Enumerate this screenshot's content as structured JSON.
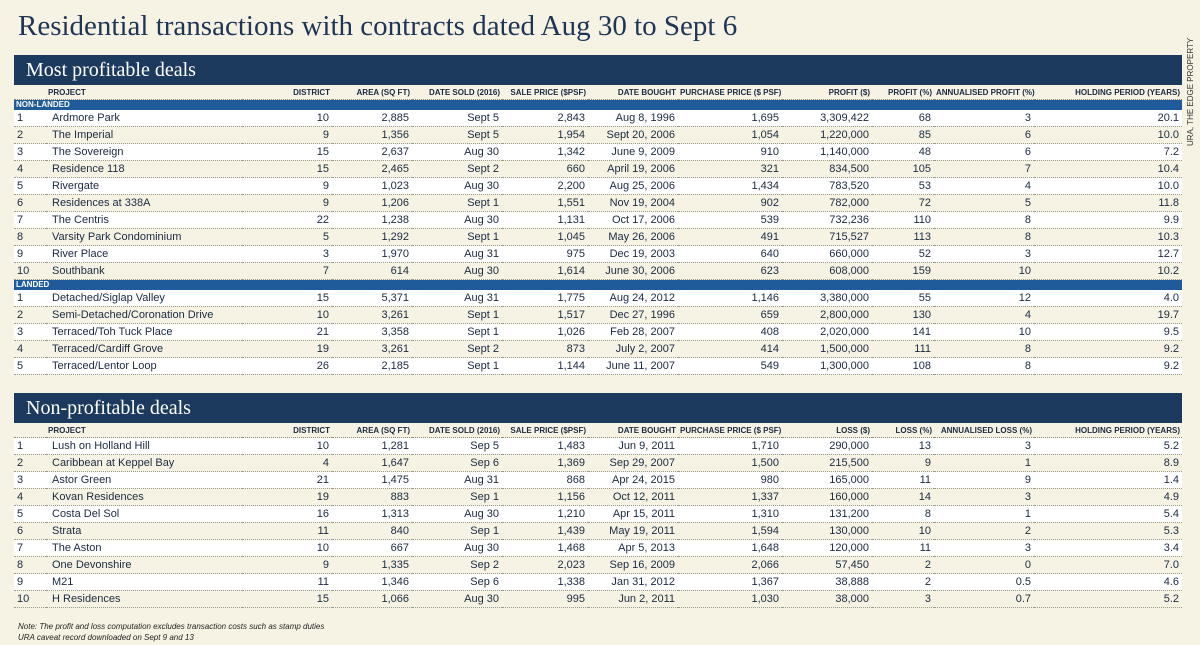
{
  "title": "Residential transactions with contracts dated Aug 30 to Sept 6",
  "source": "URA, THE EDGE PROPERTY",
  "profitable": {
    "banner": "Most profitable deals",
    "headers": [
      "PROJECT",
      "DISTRICT",
      "AREA (SQ FT)",
      "DATE SOLD (2016)",
      "SALE PRICE ($PSF)",
      "DATE BOUGHT",
      "PURCHASE PRICE ($ PSF)",
      "PROFIT ($)",
      "PROFIT (%)",
      "ANNUALISED PROFIT (%)",
      "HOLDING PERIOD (YEARS)"
    ],
    "groups": [
      {
        "label": "NON-LANDED",
        "rows": [
          [
            "1",
            "Ardmore Park",
            "10",
            "2,885",
            "Sept 5",
            "2,843",
            "Aug 8, 1996",
            "1,695",
            "3,309,422",
            "68",
            "3",
            "20.1"
          ],
          [
            "2",
            "The Imperial",
            "9",
            "1,356",
            "Sept 5",
            "1,954",
            "Sept 20, 2006",
            "1,054",
            "1,220,000",
            "85",
            "6",
            "10.0"
          ],
          [
            "3",
            "The Sovereign",
            "15",
            "2,637",
            "Aug 30",
            "1,342",
            "June 9, 2009",
            "910",
            "1,140,000",
            "48",
            "6",
            "7.2"
          ],
          [
            "4",
            "Residence 118",
            "15",
            "2,465",
            "Sept 2",
            "660",
            "April 19, 2006",
            "321",
            "834,500",
            "105",
            "7",
            "10.4"
          ],
          [
            "5",
            "Rivergate",
            "9",
            "1,023",
            "Aug 30",
            "2,200",
            "Aug 25, 2006",
            "1,434",
            "783,520",
            "53",
            "4",
            "10.0"
          ],
          [
            "6",
            "Residences at 338A",
            "9",
            "1,206",
            "Sept 1",
            "1,551",
            "Nov 19, 2004",
            "902",
            "782,000",
            "72",
            "5",
            "11.8"
          ],
          [
            "7",
            "The Centris",
            "22",
            "1,238",
            "Aug 30",
            "1,131",
            "Oct 17, 2006",
            "539",
            "732,236",
            "110",
            "8",
            "9.9"
          ],
          [
            "8",
            "Varsity Park Condominium",
            "5",
            "1,292",
            "Sept 1",
            "1,045",
            "May 26, 2006",
            "491",
            "715,527",
            "113",
            "8",
            "10.3"
          ],
          [
            "9",
            "River Place",
            "3",
            "1,970",
            "Aug 31",
            "975",
            "Dec 19, 2003",
            "640",
            "660,000",
            "52",
            "3",
            "12.7"
          ],
          [
            "10",
            "Southbank",
            "7",
            "614",
            "Aug 30",
            "1,614",
            "June 30, 2006",
            "623",
            "608,000",
            "159",
            "10",
            "10.2"
          ]
        ]
      },
      {
        "label": "LANDED",
        "rows": [
          [
            "1",
            "Detached/Siglap Valley",
            "15",
            "5,371",
            "Aug 31",
            "1,775",
            "Aug 24, 2012",
            "1,146",
            "3,380,000",
            "55",
            "12",
            "4.0"
          ],
          [
            "2",
            "Semi-Detached/Coronation Drive",
            "10",
            "3,261",
            "Sept 1",
            "1,517",
            "Dec 27, 1996",
            "659",
            "2,800,000",
            "130",
            "4",
            "19.7"
          ],
          [
            "3",
            "Terraced/Toh Tuck Place",
            "21",
            "3,358",
            "Sept 1",
            "1,026",
            "Feb 28, 2007",
            "408",
            "2,020,000",
            "141",
            "10",
            "9.5"
          ],
          [
            "4",
            "Terraced/Cardiff Grove",
            "19",
            "3,261",
            "Sept 2",
            "873",
            "July 2, 2007",
            "414",
            "1,500,000",
            "111",
            "8",
            "9.2"
          ],
          [
            "5",
            "Terraced/Lentor Loop",
            "26",
            "2,185",
            "Sept 1",
            "1,144",
            "June 11, 2007",
            "549",
            "1,300,000",
            "108",
            "8",
            "9.2"
          ]
        ]
      }
    ]
  },
  "nonprofitable": {
    "banner": "Non-profitable deals",
    "headers": [
      "PROJECT",
      "DISTRICT",
      "AREA (SQ FT)",
      "DATE SOLD (2016)",
      "SALE PRICE ($PSF)",
      "DATE BOUGHT",
      "PURCHASE PRICE ($ PSF)",
      "LOSS ($)",
      "LOSS (%)",
      "ANNUALISED LOSS (%)",
      "HOLDING PERIOD (YEARS)"
    ],
    "rows": [
      [
        "1",
        "Lush on Holland Hill",
        "10",
        "1,281",
        "Sep 5",
        "1,483",
        "Jun 9, 2011",
        "1,710",
        "290,000",
        "13",
        "3",
        "5.2"
      ],
      [
        "2",
        "Caribbean at Keppel Bay",
        "4",
        "1,647",
        "Sep 6",
        "1,369",
        "Sep 29, 2007",
        "1,500",
        "215,500",
        "9",
        "1",
        "8.9"
      ],
      [
        "3",
        "Astor Green",
        "21",
        "1,475",
        "Aug 31",
        "868",
        "Apr 24, 2015",
        "980",
        "165,000",
        "11",
        "9",
        "1.4"
      ],
      [
        "4",
        "Kovan Residences",
        "19",
        "883",
        "Sep 1",
        "1,156",
        "Oct 12, 2011",
        "1,337",
        "160,000",
        "14",
        "3",
        "4.9"
      ],
      [
        "5",
        "Costa Del Sol",
        "16",
        "1,313",
        "Aug 30",
        "1,210",
        "Apr 15, 2011",
        "1,310",
        "131,200",
        "8",
        "1",
        "5.4"
      ],
      [
        "6",
        "Strata",
        "11",
        "840",
        "Sep 1",
        "1,439",
        "May 19, 2011",
        "1,594",
        "130,000",
        "10",
        "2",
        "5.3"
      ],
      [
        "7",
        "The Aston",
        "10",
        "667",
        "Aug 30",
        "1,468",
        "Apr 5, 2013",
        "1,648",
        "120,000",
        "11",
        "3",
        "3.4"
      ],
      [
        "8",
        "One Devonshire",
        "9",
        "1,335",
        "Sep 2",
        "2,023",
        "Sep 16, 2009",
        "2,066",
        "57,450",
        "2",
        "0",
        "7.0"
      ],
      [
        "9",
        "M21",
        "11",
        "1,346",
        "Sep 6",
        "1,338",
        "Jan 31, 2012",
        "1,367",
        "38,888",
        "2",
        "0.5",
        "4.6"
      ],
      [
        "10",
        "H Residences",
        "15",
        "1,066",
        "Aug 30",
        "995",
        "Jun 2, 2011",
        "1,030",
        "38,000",
        "3",
        "0.7",
        "5.2"
      ]
    ]
  },
  "footnotes": [
    "Note: The profit and loss computation excludes transaction costs such as stamp duties",
    "URA caveat record downloaded on Sept 9 and 13"
  ]
}
